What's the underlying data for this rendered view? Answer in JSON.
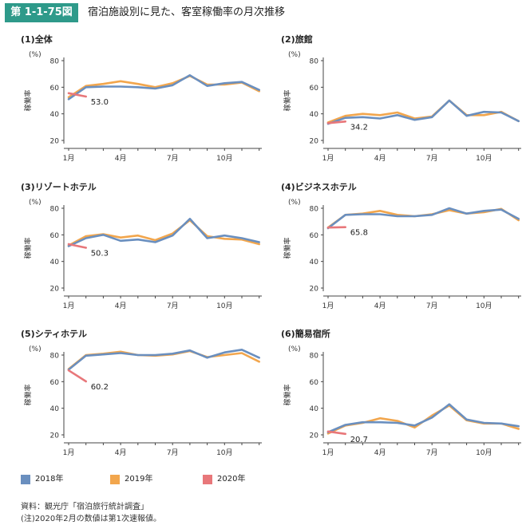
{
  "header": {
    "figure_number": "第 1-1-75図",
    "title": "宿泊施設別に見た、客室稼働率の月次推移"
  },
  "colors": {
    "2018": "#6a8fbf",
    "2019": "#f2a64d",
    "2020": "#e8777a"
  },
  "legend": [
    "2018年",
    "2019年",
    "2020年"
  ],
  "footnotes": [
    "資料：観光庁「宿泊旅行統計調査」",
    "(注)2020年2月の数値は第1次速報値。"
  ],
  "chart_data": [
    {
      "type": "line",
      "title": "(1)全体",
      "ylabel": "稼働率",
      "unit": "(%)",
      "ylim": [
        20,
        80
      ],
      "yticks": [
        "20",
        "40",
        "60",
        "80"
      ],
      "xticks": [
        "1月",
        "4月",
        "7月",
        "10月"
      ],
      "series": [
        {
          "name": "2018年",
          "values": [
            51,
            60,
            60.5,
            60.5,
            60,
            59,
            61.5,
            69,
            61,
            63,
            64,
            58
          ]
        },
        {
          "name": "2019年",
          "values": [
            52.5,
            61,
            62.5,
            64.5,
            62.5,
            60,
            63,
            68.5,
            62,
            62,
            63.5,
            57
          ]
        },
        {
          "name": "2020年",
          "values": [
            55.5,
            53.0
          ]
        }
      ],
      "annotation": "53.0"
    },
    {
      "type": "line",
      "title": "(2)旅館",
      "ylabel": "稼働率",
      "unit": "(%)",
      "ylim": [
        20,
        80
      ],
      "yticks": [
        "20",
        "40",
        "60",
        "80"
      ],
      "xticks": [
        "1月",
        "4月",
        "7月",
        "10月"
      ],
      "series": [
        {
          "name": "2018年",
          "values": [
            32.5,
            37,
            37.5,
            36.5,
            39,
            35.5,
            37.5,
            50,
            38.5,
            41.5,
            41,
            34.5
          ]
        },
        {
          "name": "2019年",
          "values": [
            33.5,
            38.5,
            40,
            39,
            41,
            36.5,
            38,
            50,
            39,
            39,
            41.5,
            34.5
          ]
        },
        {
          "name": "2020年",
          "values": [
            33,
            34.2
          ]
        }
      ],
      "annotation": "34.2"
    },
    {
      "type": "line",
      "title": "(3)リゾートホテル",
      "ylabel": "稼働率",
      "unit": "(%)",
      "ylim": [
        20,
        80
      ],
      "yticks": [
        "20",
        "40",
        "60",
        "80"
      ],
      "xticks": [
        "1月",
        "4月",
        "7月",
        "10月"
      ],
      "series": [
        {
          "name": "2018年",
          "values": [
            51.5,
            57.5,
            60,
            55.5,
            56.5,
            54.5,
            59.5,
            72,
            57.5,
            59.5,
            57.5,
            54.5
          ]
        },
        {
          "name": "2019年",
          "values": [
            52,
            59,
            60.5,
            58,
            59.5,
            56,
            61,
            71,
            59,
            57,
            56.5,
            53
          ]
        },
        {
          "name": "2020年",
          "values": [
            53,
            50.3
          ]
        }
      ],
      "annotation": "50.3"
    },
    {
      "type": "line",
      "title": "(4)ビジネスホテル",
      "ylabel": "稼働率",
      "unit": "(%)",
      "ylim": [
        20,
        80
      ],
      "yticks": [
        "20",
        "40",
        "60",
        "80"
      ],
      "xticks": [
        "1月",
        "4月",
        "7月",
        "10月"
      ],
      "series": [
        {
          "name": "2018年",
          "values": [
            65,
            75,
            75.5,
            75.5,
            74,
            74,
            75,
            80,
            76,
            78,
            79,
            72
          ]
        },
        {
          "name": "2019年",
          "values": [
            65.5,
            75,
            76,
            78,
            75,
            74,
            75.5,
            78.5,
            76,
            77,
            79.5,
            71
          ]
        },
        {
          "name": "2020年",
          "values": [
            65.5,
            65.8
          ]
        }
      ],
      "annotation": "65.8"
    },
    {
      "type": "line",
      "title": "(5)シティホテル",
      "ylabel": "稼働率",
      "unit": "(%)",
      "ylim": [
        20,
        80
      ],
      "yticks": [
        "20",
        "40",
        "60",
        "80"
      ],
      "xticks": [
        "1月",
        "4月",
        "7月",
        "10月"
      ],
      "series": [
        {
          "name": "2018年",
          "values": [
            69,
            79.5,
            80.5,
            81.5,
            80,
            80,
            81,
            83.5,
            78,
            82,
            84,
            78
          ]
        },
        {
          "name": "2019年",
          "values": [
            69.5,
            80,
            81,
            82.5,
            80,
            79.5,
            80.5,
            83,
            78.5,
            80,
            81.5,
            75
          ]
        },
        {
          "name": "2020年",
          "values": [
            68.5,
            60.2
          ]
        }
      ],
      "annotation": "60.2"
    },
    {
      "type": "line",
      "title": "(6)簡易宿所",
      "ylabel": "稼働率",
      "unit": "(%)",
      "ylim": [
        20,
        80
      ],
      "yticks": [
        "20",
        "40",
        "60",
        "80"
      ],
      "xticks": [
        "1月",
        "4月",
        "7月",
        "10月"
      ],
      "series": [
        {
          "name": "2018年",
          "values": [
            22,
            27.5,
            29.5,
            29.5,
            29,
            27,
            33,
            43,
            31.5,
            29,
            28.5,
            26.5
          ]
        },
        {
          "name": "2019年",
          "values": [
            21,
            27,
            29,
            32.5,
            30.5,
            25.5,
            34.5,
            42,
            31,
            28.5,
            28.5,
            24.5
          ]
        },
        {
          "name": "2020年",
          "values": [
            22.5,
            20.7
          ]
        }
      ],
      "annotation": "20.7"
    }
  ]
}
